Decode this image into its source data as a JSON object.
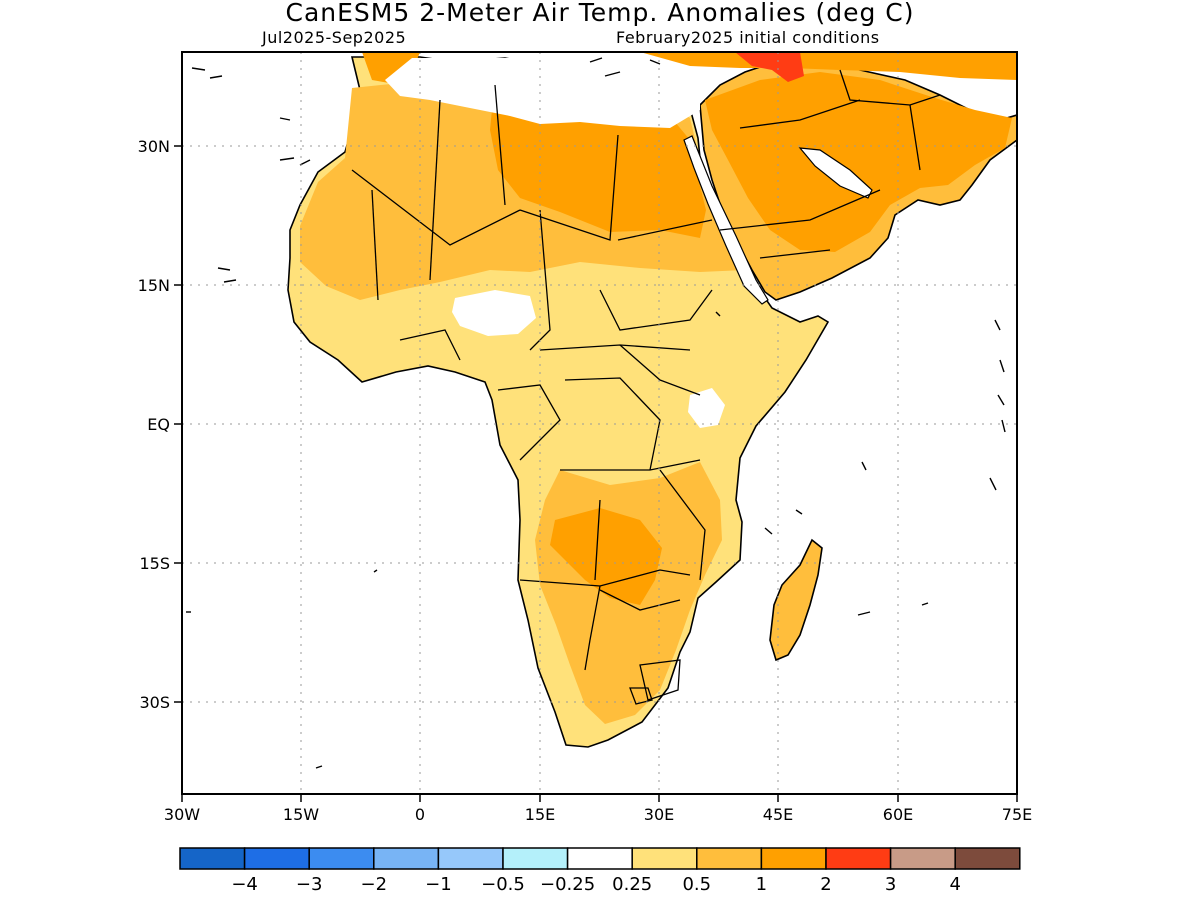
{
  "title": "CanESM5 2-Meter Air Temp. Anomalies (deg C)",
  "subtitle_left": "Jul2025-Sep2025",
  "subtitle_right": "February2025 initial conditions",
  "map": {
    "lon_range": [
      -30,
      75
    ],
    "lat_range": [
      -40,
      40
    ],
    "x_ticks": [
      "30W",
      "15W",
      "0",
      "15E",
      "30E",
      "45E",
      "60E",
      "75E"
    ],
    "y_ticks": [
      "30N",
      "15N",
      "EQ",
      "15S",
      "30S"
    ],
    "gridlines": "dotted",
    "land_fill_default": "#ffd966",
    "coastline_color": "#000000"
  },
  "colorbar": {
    "colors": [
      "#1565c8",
      "#1e6ee6",
      "#3c8cf0",
      "#78b4f5",
      "#96c8fa",
      "#b4f0fa",
      "#ffffff",
      "#ffe17a",
      "#ffbe3c",
      "#ffa000",
      "#ff3c14",
      "#c89b87",
      "#7d4b3c"
    ],
    "labels": [
      "-4",
      "-3",
      "-2",
      "-1",
      "-0.5",
      "-0.25",
      "0.25",
      "0.5",
      "1",
      "2",
      "3",
      "4"
    ]
  }
}
